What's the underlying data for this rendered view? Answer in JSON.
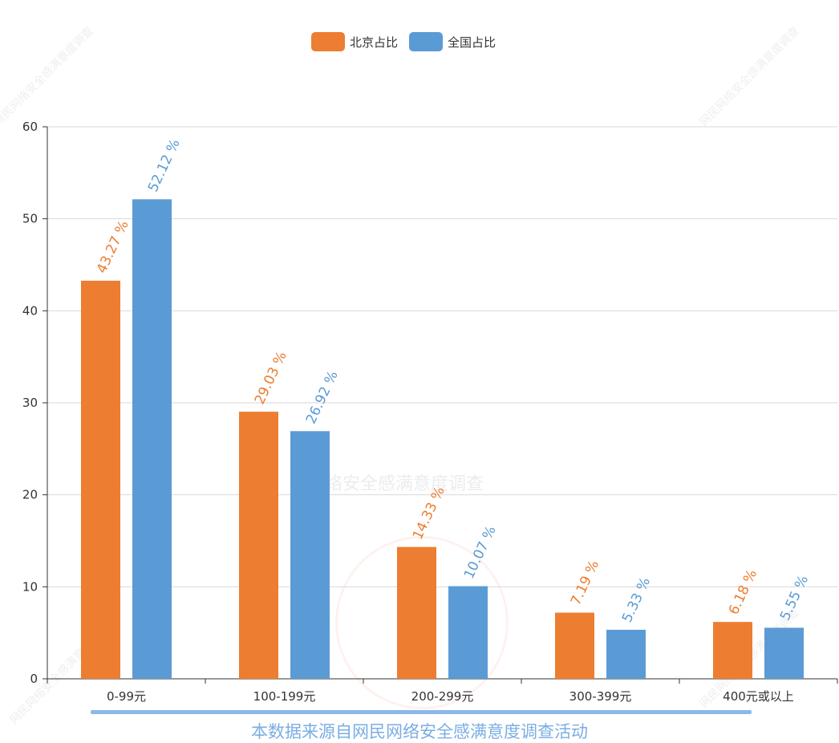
{
  "legend": [
    {
      "label": "北京占比",
      "color": "#ed7d31"
    },
    {
      "label": "全国占比",
      "color": "#5b9bd5"
    }
  ],
  "source_note": "本数据来源自网民网络安全感满意度调查活动",
  "watermarks": {
    "corner": "网民网络安全感满意度调查",
    "center": "络安全感满意度调查"
  },
  "chart_data": {
    "type": "bar",
    "categories": [
      "0-99元",
      "100-199元",
      "200-299元",
      "300-399元",
      "400元或以上"
    ],
    "series": [
      {
        "name": "北京占比",
        "color": "#ed7d31",
        "values": [
          43.27,
          29.03,
          14.33,
          7.19,
          6.18
        ]
      },
      {
        "name": "全国占比",
        "color": "#5b9bd5",
        "values": [
          52.12,
          26.92,
          10.07,
          5.33,
          5.55
        ]
      }
    ],
    "label_suffix": " %",
    "ylim": [
      0,
      60
    ],
    "yticks": [
      0,
      10,
      20,
      30,
      40,
      50,
      60
    ],
    "grid": true,
    "legend_position": "top-center"
  }
}
